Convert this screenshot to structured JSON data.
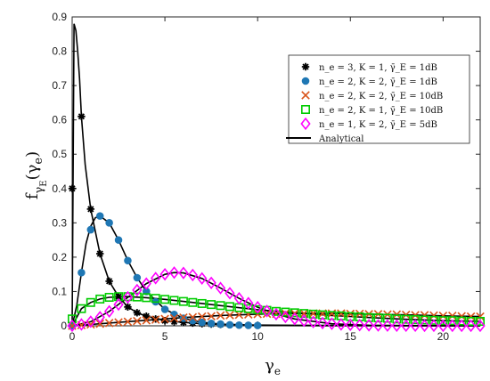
{
  "chart_data": {
    "type": "line",
    "xlabel": "γ",
    "xlabel_sub": "e",
    "ylabel": "f",
    "ylabel_sub_main": "γ",
    "ylabel_sub_sub": "E",
    "ylabel_arg": "(γ",
    "ylabel_arg_sub": "e",
    "ylabel_arg_close": ")",
    "xlim": [
      0,
      22
    ],
    "ylim": [
      0,
      0.9
    ],
    "xticks": [
      0,
      5,
      10,
      15,
      20
    ],
    "yticks": [
      0,
      0.1,
      0.2,
      0.3,
      0.4,
      0.5,
      0.6,
      0.7,
      0.8,
      0.9
    ],
    "xtick_labels": [
      "0",
      "5",
      "10",
      "15",
      "20"
    ],
    "ytick_labels": [
      "0",
      "0.1",
      "0.2",
      "0.3",
      "0.4",
      "0.5",
      "0.6",
      "0.7",
      "0.8",
      "0.9"
    ],
    "grid": false,
    "legend_position": "upper-right",
    "series": [
      {
        "name": "n_e = 3, K = 1, γ̄_E = 1dB",
        "marker": "asterisk",
        "color": "#000000",
        "x": [
          0,
          0.5,
          1,
          1.5,
          2,
          2.5,
          3,
          3.5,
          4,
          4.5,
          5,
          5.5,
          6,
          6.5,
          7,
          7.5,
          8
        ],
        "y": [
          0.4,
          0.61,
          0.34,
          0.21,
          0.13,
          0.085,
          0.055,
          0.038,
          0.028,
          0.02,
          0.015,
          0.012,
          0.01,
          0.008,
          0.006,
          0.005,
          0.004
        ]
      },
      {
        "name": "n_e = 2, K = 2, γ̄_E = 1dB",
        "marker": "circle",
        "color": "#1f77b4",
        "x": [
          0,
          0.5,
          1,
          1.5,
          2,
          2.5,
          3,
          3.5,
          4,
          4.5,
          5,
          5.5,
          6,
          6.5,
          7,
          7.5,
          8,
          8.5,
          9,
          9.5,
          10
        ],
        "y": [
          0.0,
          0.155,
          0.28,
          0.32,
          0.3,
          0.25,
          0.19,
          0.14,
          0.1,
          0.07,
          0.048,
          0.033,
          0.022,
          0.015,
          0.01,
          0.007,
          0.005,
          0.003,
          0.002,
          0.0015,
          0.001
        ]
      },
      {
        "name": "n_e = 2, K = 2, γ̄_E = 10dB",
        "marker": "x",
        "color": "#d95319",
        "x": [
          0,
          0.5,
          1,
          1.5,
          2,
          2.5,
          3,
          3.5,
          4,
          4.5,
          5,
          5.5,
          6,
          6.5,
          7,
          7.5,
          8,
          8.5,
          9,
          9.5,
          10,
          10.5,
          11,
          11.5,
          12,
          12.5,
          13,
          13.5,
          14,
          14.5,
          15,
          15.5,
          16,
          16.5,
          17,
          17.5,
          18,
          18.5,
          19,
          19.5,
          20,
          20.5,
          21,
          21.5,
          22
        ],
        "y": [
          0.0,
          0.002,
          0.004,
          0.006,
          0.008,
          0.01,
          0.012,
          0.014,
          0.016,
          0.018,
          0.02,
          0.022,
          0.024,
          0.025,
          0.027,
          0.028,
          0.03,
          0.031,
          0.032,
          0.033,
          0.034,
          0.035,
          0.035,
          0.036,
          0.036,
          0.036,
          0.036,
          0.036,
          0.036,
          0.036,
          0.035,
          0.035,
          0.034,
          0.034,
          0.033,
          0.033,
          0.032,
          0.031,
          0.031,
          0.03,
          0.029,
          0.029,
          0.028,
          0.027,
          0.027
        ]
      },
      {
        "name": "n_e = 2, K = 1, γ̄_E = 10dB",
        "marker": "square",
        "color": "#00cc00",
        "x": [
          0,
          0.5,
          1,
          1.5,
          2,
          2.5,
          3,
          3.5,
          4,
          4.5,
          5,
          5.5,
          6,
          6.5,
          7,
          7.5,
          8,
          8.5,
          9,
          9.5,
          10,
          10.5,
          11,
          11.5,
          12,
          12.5,
          13,
          13.5,
          14,
          14.5,
          15,
          15.5,
          16,
          16.5,
          17,
          17.5,
          18,
          18.5,
          19,
          19.5,
          20,
          20.5,
          21,
          21.5,
          22
        ],
        "y": [
          0.02,
          0.05,
          0.068,
          0.078,
          0.083,
          0.085,
          0.085,
          0.084,
          0.082,
          0.08,
          0.077,
          0.074,
          0.071,
          0.068,
          0.065,
          0.062,
          0.059,
          0.056,
          0.053,
          0.05,
          0.047,
          0.045,
          0.042,
          0.04,
          0.038,
          0.036,
          0.034,
          0.032,
          0.03,
          0.029,
          0.027,
          0.026,
          0.024,
          0.023,
          0.022,
          0.02,
          0.019,
          0.018,
          0.017,
          0.016,
          0.015,
          0.015,
          0.014,
          0.013,
          0.013
        ]
      },
      {
        "name": "n_e = 1, K = 2, γ̄_E = 5dB",
        "marker": "diamond",
        "color": "#ff00ff",
        "x": [
          0,
          0.5,
          1,
          1.5,
          2,
          2.5,
          3,
          3.5,
          4,
          4.5,
          5,
          5.5,
          6,
          6.5,
          7,
          7.5,
          8,
          8.5,
          9,
          9.5,
          10,
          10.5,
          11,
          11.5,
          12,
          12.5,
          13,
          13.5,
          14,
          14.5,
          15,
          15.5,
          16,
          16.5,
          17,
          17.5,
          18,
          18.5,
          19,
          19.5,
          20,
          20.5,
          21,
          21.5,
          22
        ],
        "y": [
          0.0,
          0.004,
          0.012,
          0.025,
          0.042,
          0.062,
          0.083,
          0.104,
          0.123,
          0.139,
          0.15,
          0.155,
          0.154,
          0.148,
          0.138,
          0.125,
          0.11,
          0.095,
          0.08,
          0.066,
          0.054,
          0.043,
          0.034,
          0.026,
          0.02,
          0.015,
          0.011,
          0.008,
          0.006,
          0.004,
          0.003,
          0.002,
          0.0015,
          0.001,
          0.0008,
          0.0006,
          0.0004,
          0.0003,
          0.0002,
          0.0002,
          0.0001,
          0.0001,
          0.0001,
          0.0001,
          0.0001
        ]
      },
      {
        "name": "Analytical",
        "marker": "line",
        "color": "#000000",
        "curves": [
          {
            "x": [
              0,
              0.1,
              0.2,
              0.3,
              0.4,
              0.5,
              0.7,
              1,
              1.5,
              2,
              2.5,
              3,
              3.5,
              4,
              5,
              6,
              7,
              8,
              10,
              12,
              15,
              18,
              22
            ],
            "y": [
              0.0,
              0.88,
              0.86,
              0.8,
              0.72,
              0.61,
              0.47,
              0.34,
              0.21,
              0.13,
              0.085,
              0.055,
              0.038,
              0.028,
              0.015,
              0.01,
              0.006,
              0.004,
              0.002,
              0.0015,
              0.001,
              0.0008,
              0.0005
            ]
          },
          {
            "x": [
              0,
              0.25,
              0.5,
              0.75,
              1,
              1.25,
              1.5,
              2,
              2.5,
              3,
              3.5,
              4,
              5,
              6,
              7,
              8,
              10,
              14,
              22
            ],
            "y": [
              0.0,
              0.06,
              0.155,
              0.24,
              0.29,
              0.315,
              0.32,
              0.3,
              0.25,
              0.19,
              0.14,
              0.1,
              0.048,
              0.022,
              0.01,
              0.005,
              0.001,
              0.0002,
              0.0001
            ]
          },
          {
            "x": [
              0,
              2,
              4,
              6,
              8,
              10,
              12,
              14,
              16,
              18,
              20,
              22
            ],
            "y": [
              0.0,
              0.008,
              0.016,
              0.024,
              0.03,
              0.034,
              0.036,
              0.036,
              0.034,
              0.032,
              0.029,
              0.027
            ]
          },
          {
            "x": [
              0,
              0.5,
              1,
              1.5,
              2,
              3,
              4,
              5,
              6,
              8,
              10,
              12,
              14,
              16,
              18,
              20,
              22
            ],
            "y": [
              0.0,
              0.05,
              0.068,
              0.078,
              0.083,
              0.085,
              0.082,
              0.077,
              0.071,
              0.059,
              0.047,
              0.038,
              0.03,
              0.024,
              0.019,
              0.015,
              0.013
            ]
          },
          {
            "x": [
              0,
              1,
              2,
              3,
              4,
              5,
              5.5,
              6,
              7,
              8,
              9,
              10,
              11,
              12,
              14,
              16,
              18,
              22
            ],
            "y": [
              0.0,
              0.012,
              0.042,
              0.083,
              0.123,
              0.15,
              0.155,
              0.154,
              0.138,
              0.11,
              0.08,
              0.054,
              0.034,
              0.02,
              0.006,
              0.0015,
              0.0004,
              0.0001
            ]
          }
        ]
      }
    ]
  }
}
